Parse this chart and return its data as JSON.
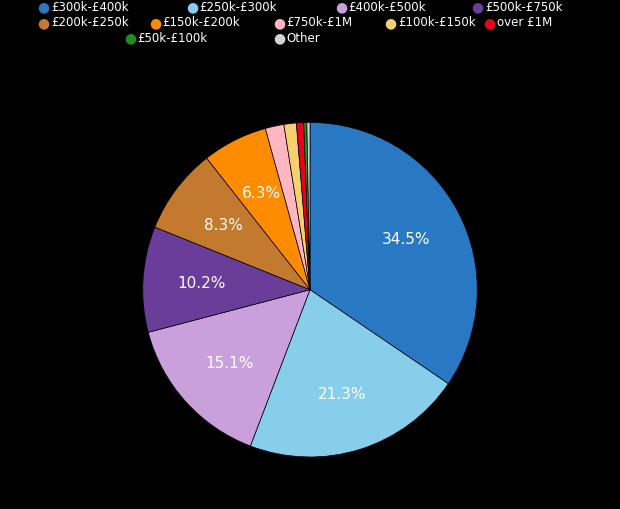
{
  "labels": [
    "£300k-£400k",
    "£250k-£300k",
    "£400k-£500k",
    "£500k-£750k",
    "£200k-£250k",
    "£150k-£200k",
    "£750k-£1M",
    "£100k-£150k",
    "over £1M",
    "£50k-£100k",
    "Other"
  ],
  "values": [
    34.5,
    21.3,
    15.1,
    10.2,
    8.3,
    6.3,
    1.8,
    1.2,
    0.7,
    0.3,
    0.3
  ],
  "colors": [
    "#2878c3",
    "#87ceeb",
    "#c9a0dc",
    "#6a3d9a",
    "#c47a2e",
    "#ff8c00",
    "#ffb6c1",
    "#f5d06e",
    "#e8001e",
    "#228b22",
    "#d3d3d3"
  ],
  "background_color": "#000000",
  "text_color": "#ffffff",
  "legend_row1": [
    "£300k-£400k",
    "£250k-£300k",
    "£400k-£500k",
    "£500k-£750k"
  ],
  "legend_row2": [
    "£200k-£250k",
    "£150k-£200k",
    "£750k-£1M",
    "£100k-£150k",
    "over £1M"
  ],
  "legend_row3": [
    "£50k-£100k",
    "Other"
  ],
  "labeled_slices": {
    "£300k-£400k": "34.5%",
    "£250k-£300k": "21.3%",
    "£400k-£500k": "15.1%",
    "£500k-£750k": "10.2%",
    "£200k-£250k": "8.3%",
    "£150k-£200k": "6.3%"
  },
  "figsize": [
    6.2,
    5.1
  ],
  "dpi": 100
}
